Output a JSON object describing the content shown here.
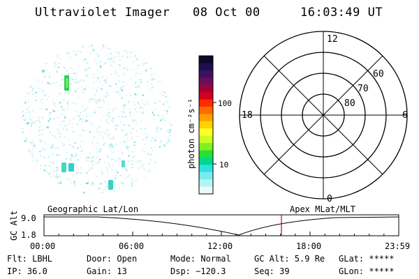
{
  "header": {
    "title": "Ultraviolet Imager",
    "date": "08 Oct 00",
    "time": "16:03:49 UT"
  },
  "colorbar": {
    "label": "photon cm⁻²s⁻¹",
    "ticks": [
      "100",
      "10"
    ],
    "colors": [
      "#0a0a2a",
      "#1e0f4a",
      "#3c1264",
      "#6a0e5c",
      "#a0003c",
      "#d4001e",
      "#ff2a00",
      "#ff6a00",
      "#ff9f00",
      "#ffd200",
      "#ffff28",
      "#c8ff20",
      "#80f020",
      "#28e030",
      "#00d890",
      "#30e0e0",
      "#78ecec",
      "#b4f4f4",
      "#e6fafa"
    ]
  },
  "polar": {
    "labels": {
      "top": "12",
      "left": "18",
      "right": "6",
      "bottom": "0"
    },
    "rings": [
      "80",
      "70",
      "60"
    ]
  },
  "timeline": {
    "ylabel": "GC Alt",
    "ymax": "9.0",
    "ymin": "1.8",
    "left_label": "Geographic Lat/Lon",
    "right_label": "Apex MLat/MLT",
    "ticks": [
      "00:00",
      "06:00",
      "12:00",
      "18:00",
      "23:59"
    ],
    "marker_time": "16:03:49",
    "marker_color": "#cc0000"
  },
  "info": {
    "row1": {
      "flt": "Flt: LBHL",
      "door": "Door: Open",
      "mode": "Mode: Normal",
      "gcalt": "GC Alt: 5.9 Re",
      "glat": "GLat: *****"
    },
    "row2": {
      "ip": "IP: 36.0",
      "gain": "Gain: 13",
      "dsp": "Dsp: −120.3",
      "seq": "Seq: 39",
      "glon": "GLon: *****"
    }
  }
}
